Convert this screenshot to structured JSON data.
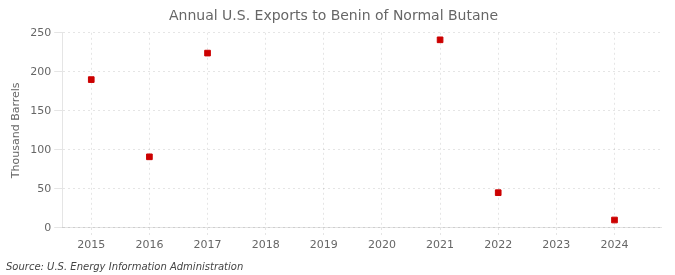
{
  "chart_data": {
    "type": "scatter",
    "title": "Annual U.S. Exports to Benin of Normal Butane",
    "ylabel": "Thousand Barrels",
    "annotation": "Source: U.S. Energy Information Administration",
    "x": [
      2015,
      2016,
      2017,
      2021,
      2022,
      2024
    ],
    "values": [
      190,
      91,
      224,
      241,
      45,
      10
    ],
    "color": "#cc0000",
    "marker": "square",
    "xlim": [
      2014.5,
      2024.8
    ],
    "ylim": [
      0,
      250
    ],
    "xticks": [
      2015,
      2016,
      2017,
      2018,
      2019,
      2020,
      2021,
      2022,
      2023,
      2024
    ],
    "yticks": [
      0,
      50,
      100,
      150,
      200,
      250
    ],
    "grid": true
  }
}
